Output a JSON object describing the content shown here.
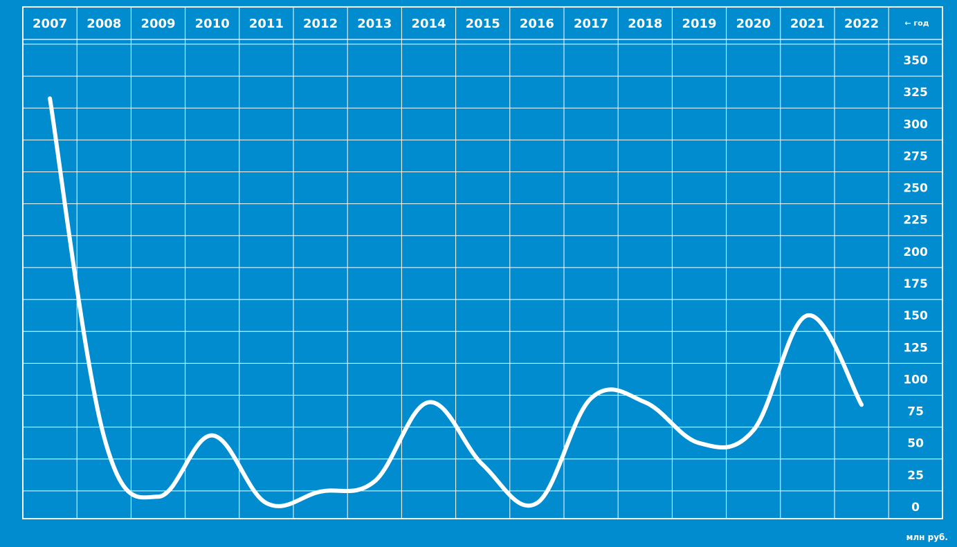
{
  "chart_data": {
    "type": "line",
    "x": [
      "2007",
      "2008",
      "2009",
      "2010",
      "2011",
      "2012",
      "2013",
      "2014",
      "2015",
      "2016",
      "2017",
      "2018",
      "2019",
      "2020",
      "2021",
      "2022"
    ],
    "series": [
      {
        "values": [
          320,
          55,
          8,
          56,
          3,
          12,
          20,
          82,
          33,
          3,
          85,
          82,
          50,
          60,
          150,
          80
        ]
      }
    ],
    "y_ticks": [
      "350",
      "325",
      "300",
      "275",
      "250",
      "225",
      "200",
      "175",
      "150",
      "125",
      "100",
      "75",
      "50",
      "25",
      "0"
    ],
    "ylim": [
      0,
      350
    ],
    "x_axis_label": "← год",
    "y_axis_unit": "млн руб.",
    "x_axis_position": "top",
    "y_axis_position": "right",
    "grid": true
  },
  "colors": {
    "background": "#008ccf",
    "grid": "#ffffff",
    "line": "#ffffff",
    "text": "#ffffff"
  }
}
